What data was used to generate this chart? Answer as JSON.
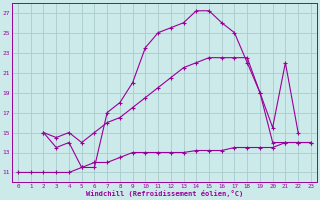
{
  "background_color": "#cceaea",
  "grid_color": "#aacccc",
  "line_color": "#990099",
  "x_label": "Windchill (Refroidissement éolien,°C)",
  "xlim": [
    -0.5,
    23.5
  ],
  "ylim": [
    10,
    28
  ],
  "xticks": [
    0,
    1,
    2,
    3,
    4,
    5,
    6,
    7,
    8,
    9,
    10,
    11,
    12,
    13,
    14,
    15,
    16,
    17,
    18,
    19,
    20,
    21,
    22,
    23
  ],
  "yticks": [
    11,
    13,
    15,
    17,
    19,
    21,
    23,
    25,
    27
  ],
  "line1_x": [
    2,
    3,
    4,
    5,
    6,
    7,
    8,
    9,
    10,
    11,
    12,
    13,
    14,
    15,
    16,
    17,
    18,
    19,
    20,
    21,
    22
  ],
  "line1_y": [
    15,
    13.5,
    14,
    11.5,
    11.5,
    17,
    18,
    20,
    23.5,
    25,
    25.5,
    26,
    27.2,
    27.2,
    26,
    25,
    22,
    19,
    15.5,
    22,
    15
  ],
  "line2_x": [
    2,
    3,
    4,
    5,
    6,
    7,
    8,
    9,
    10,
    11,
    12,
    13,
    14,
    15,
    16,
    17,
    18,
    19,
    20,
    21,
    22,
    23
  ],
  "line2_y": [
    15,
    14.5,
    15,
    14,
    15,
    16,
    16.5,
    17.5,
    18.5,
    19.5,
    20.5,
    21.5,
    22,
    22.5,
    22.5,
    22.5,
    22.5,
    19,
    14,
    14,
    14,
    14
  ],
  "line3_x": [
    0,
    1,
    2,
    3,
    4,
    5,
    6,
    7,
    8,
    9,
    10,
    11,
    12,
    13,
    14,
    15,
    16,
    17,
    18,
    19,
    20,
    21,
    22,
    23
  ],
  "line3_y": [
    11,
    11,
    11,
    11,
    11,
    11.5,
    12,
    12,
    12.5,
    13,
    13,
    13,
    13,
    13,
    13.2,
    13.2,
    13.2,
    13.5,
    13.5,
    13.5,
    13.5,
    14,
    14,
    14
  ]
}
